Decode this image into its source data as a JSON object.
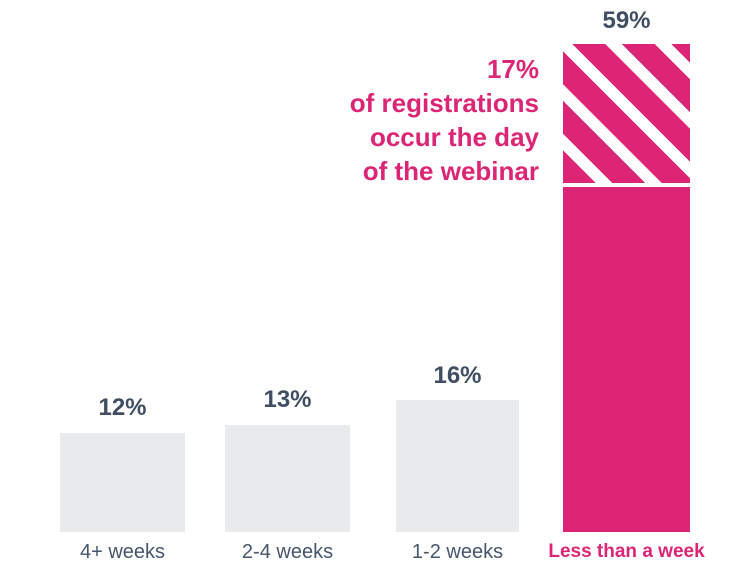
{
  "chart_data": {
    "type": "bar",
    "title": "",
    "xlabel": "",
    "ylabel": "",
    "categories": [
      "4+ weeks",
      "2-4 weeks",
      "1-2 weeks",
      "Less than a week"
    ],
    "values": [
      12,
      13,
      16,
      59
    ],
    "value_labels": [
      "12%",
      "13%",
      "16%",
      "59%"
    ],
    "unit": "%",
    "ylim": [
      0,
      59
    ],
    "grid": false,
    "legend": "none",
    "highlight": {
      "category": "Less than a week",
      "value": 59,
      "striped_top_value": 17,
      "striped_top_meaning": "portion of registrations occurring the day of the webinar"
    },
    "annotation": {
      "lines": [
        "17%",
        "of registrations",
        "occur the day",
        "of the webinar"
      ],
      "full_text": "17% of registrations occur the day of the webinar"
    },
    "colors": {
      "bar_default": "#E9EAEC",
      "bar_highlight": "#DC2575",
      "value_label_text": "#3F4E63",
      "axis_label_text": "#46566B",
      "highlight_label_text": "#DC2575",
      "background": "#FFFFFF"
    }
  }
}
